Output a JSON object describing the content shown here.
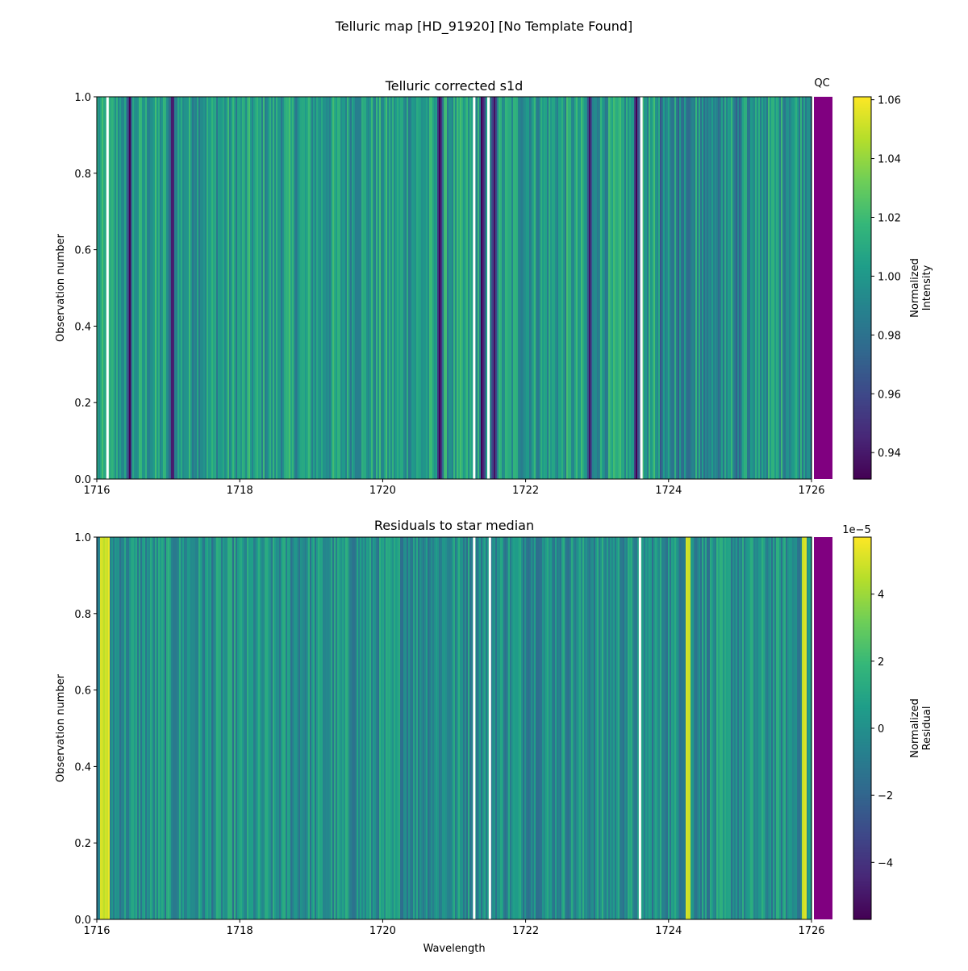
{
  "chart_data": [
    {
      "type": "heatmap",
      "title": "Telluric corrected s1d",
      "xlabel": "",
      "ylabel": "Observation number",
      "xlim": [
        1716,
        1726
      ],
      "ylim": [
        0,
        1
      ],
      "xticks": [
        "1716",
        "1718",
        "1720",
        "1722",
        "1724",
        "1726"
      ],
      "yticks": [
        "0.0",
        "0.2",
        "0.4",
        "0.6",
        "0.8",
        "1.0"
      ],
      "colormap": "viridis",
      "clim": [
        0.931,
        1.061
      ],
      "colorbar_label": "Normalized\nIntensity",
      "colorbar_ticks": [
        "0.94",
        "0.96",
        "0.98",
        "1.00",
        "1.02",
        "1.04",
        "1.06"
      ],
      "baseline": 1.0,
      "absorption_lines": [
        1716.45,
        1717.05,
        1720.8,
        1721.4,
        1721.55,
        1722.9,
        1723.55
      ],
      "gaps": [
        1716.15,
        1721.28,
        1721.48,
        1723.62
      ],
      "qc_label": "QC",
      "qc_color": "#800080"
    },
    {
      "type": "heatmap",
      "title": "Residuals to star median",
      "xlabel": "Wavelength",
      "ylabel": "Observation number",
      "xlim": [
        1716,
        1726
      ],
      "ylim": [
        0,
        1
      ],
      "xticks": [
        "1716",
        "1718",
        "1720",
        "1722",
        "1724",
        "1726"
      ],
      "yticks": [
        "0.0",
        "0.2",
        "0.4",
        "0.6",
        "0.8",
        "1.0"
      ],
      "colormap": "viridis",
      "clim": [
        -5.7,
        5.7
      ],
      "scale_label": "1e−5",
      "colorbar_label": "Normalized\nResidual",
      "colorbar_ticks": [
        "−4",
        "−2",
        "0",
        "2",
        "4"
      ],
      "baseline": 0,
      "bright_lines": [
        1716.08,
        1716.15,
        1724.28,
        1725.9
      ],
      "gaps": [
        1721.28,
        1721.5,
        1723.6
      ],
      "qc_color": "#800080"
    }
  ],
  "suptitle": "Telluric map [HD_91920] [No Template Found]"
}
